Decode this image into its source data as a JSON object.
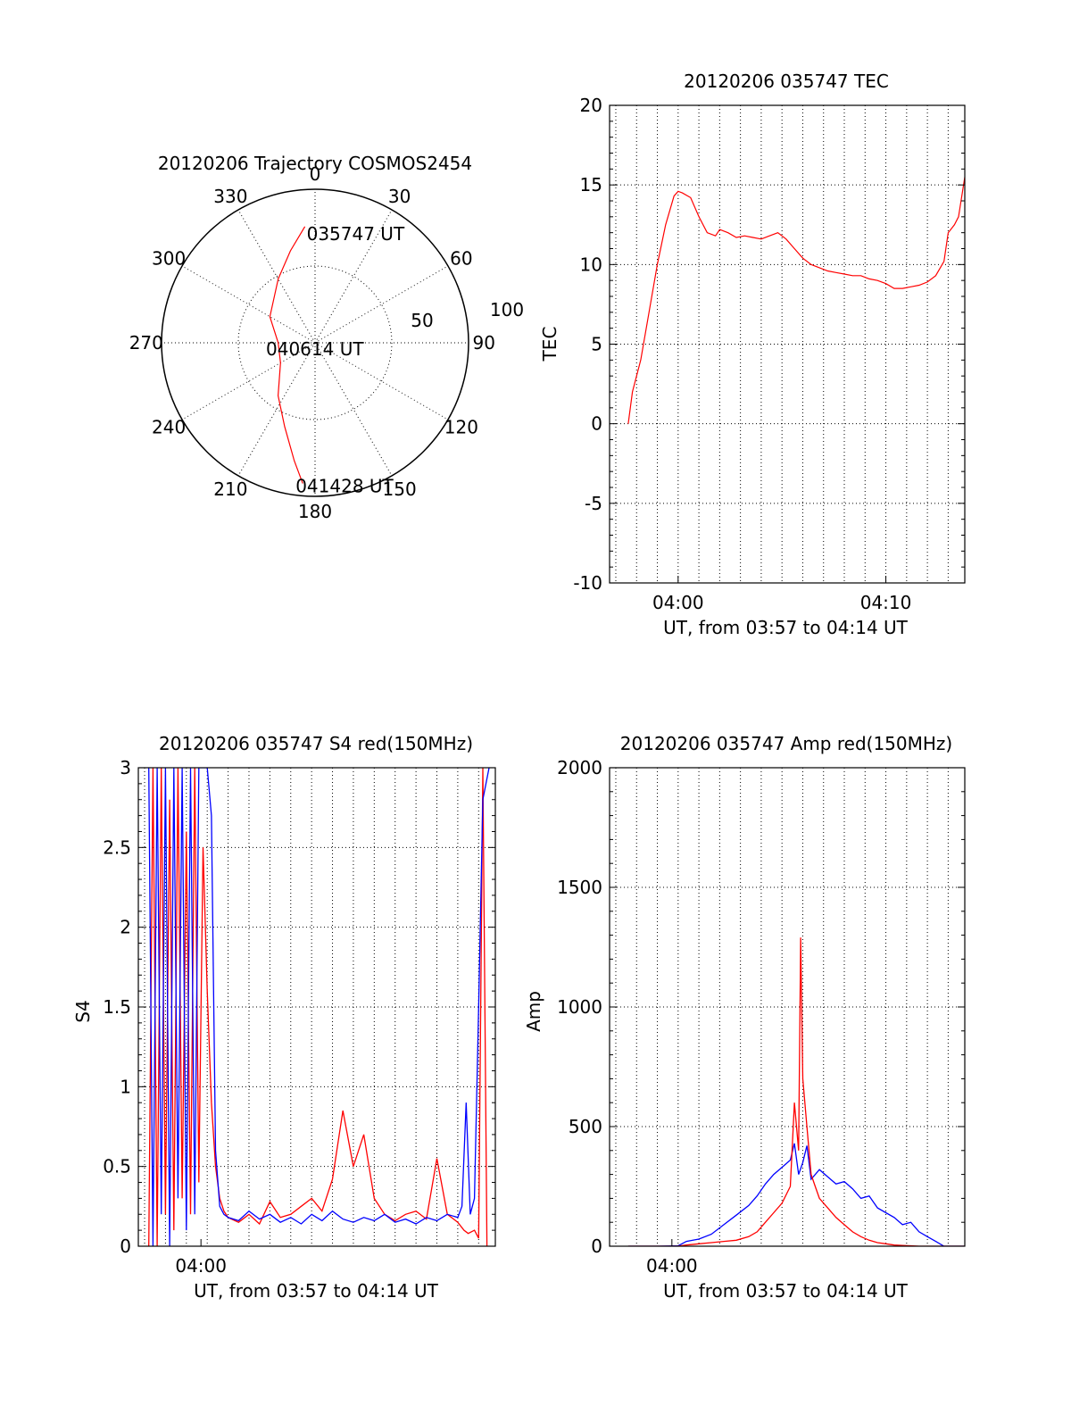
{
  "chart_data": [
    {
      "type": "polar",
      "title": "20120206 Trajectory COSMOS2454",
      "angle_labels": [
        "0",
        "30",
        "60",
        "90",
        "120",
        "150",
        "180",
        "210",
        "240",
        "270",
        "300",
        "330"
      ],
      "radial_labels": [
        "50",
        "100"
      ],
      "rlim": [
        0,
        100
      ],
      "grid": true,
      "series": [
        {
          "color": "#ff0000",
          "points": [
            [
              355,
              76
            ],
            [
              345,
              62
            ],
            [
              330,
              48
            ],
            [
              300,
              34
            ],
            [
              270,
              24
            ],
            [
              240,
              26
            ],
            [
              215,
              42
            ],
            [
              200,
              58
            ],
            [
              190,
              78
            ],
            [
              185,
              92
            ]
          ]
        }
      ],
      "annotations": [
        {
          "text": "035747 UT",
          "az": 355,
          "r": 76
        },
        {
          "text": "040614 UT",
          "az": 270,
          "r": 0
        },
        {
          "text": "041428 UT",
          "az": 185,
          "r": 92
        }
      ]
    },
    {
      "type": "line",
      "title": "20120206 035747 TEC",
      "xlabel": "UT, from 03:57 to 04:14 UT",
      "ylabel": "TEC",
      "xlim": [
        3.7,
        20.8
      ],
      "ylim": [
        -10,
        20
      ],
      "xticks": [
        {
          "value": 7.0,
          "label": "04:00"
        },
        {
          "value": 17.0,
          "label": "04:10"
        }
      ],
      "yticks": [
        "-10",
        "-5",
        "0",
        "5",
        "10",
        "15",
        "20"
      ],
      "grid": true,
      "series": [
        {
          "color": "#ff0000",
          "x": [
            4.6,
            4.8,
            5.2,
            5.6,
            6.0,
            6.4,
            6.8,
            7.0,
            7.2,
            7.6,
            8.0,
            8.4,
            8.8,
            9.0,
            9.4,
            9.8,
            10.2,
            10.6,
            11.0,
            11.4,
            11.8,
            12.2,
            12.6,
            13.0,
            13.4,
            13.8,
            14.2,
            14.6,
            15.0,
            15.4,
            15.8,
            16.2,
            16.6,
            17.0,
            17.4,
            17.8,
            18.2,
            18.6,
            19.0,
            19.4,
            19.8,
            20.0,
            20.3,
            20.5,
            20.8
          ],
          "y": [
            0.0,
            2.0,
            4.0,
            7.0,
            10.0,
            12.5,
            14.3,
            14.6,
            14.5,
            14.2,
            13.0,
            12.0,
            11.8,
            12.2,
            12.0,
            11.7,
            11.8,
            11.7,
            11.6,
            11.8,
            12.0,
            11.6,
            11.0,
            10.4,
            10.0,
            9.8,
            9.6,
            9.5,
            9.4,
            9.3,
            9.3,
            9.1,
            9.0,
            8.8,
            8.5,
            8.5,
            8.6,
            8.7,
            8.9,
            9.3,
            10.2,
            12.0,
            12.5,
            13.0,
            15.5
          ]
        }
      ]
    },
    {
      "type": "line",
      "title": "20120206 035747 S4 red(150MHz)",
      "xlabel": "UT, from 03:57 to 04:14 UT",
      "ylabel": "S4",
      "xlim": [
        3.7,
        20.8
      ],
      "ylim": [
        0,
        3
      ],
      "xticks": [
        {
          "value": 6.7,
          "label": "04:00"
        }
      ],
      "yticks": [
        "0",
        "0.5",
        "1",
        "1.5",
        "2",
        "2.5",
        "3"
      ],
      "grid": true,
      "series": [
        {
          "color": "#ff0000",
          "x": [
            4.2,
            4.4,
            4.6,
            4.8,
            5.0,
            5.2,
            5.4,
            5.6,
            5.8,
            6.0,
            6.2,
            6.4,
            6.6,
            6.8,
            7.0,
            7.2,
            7.4,
            7.6,
            7.8,
            8.0,
            8.5,
            9.0,
            9.5,
            10.0,
            10.5,
            11.0,
            11.5,
            12.0,
            12.5,
            13.0,
            13.5,
            14.0,
            14.5,
            15.0,
            15.5,
            16.0,
            16.5,
            17.0,
            17.5,
            18.0,
            18.5,
            19.0,
            19.3,
            19.5,
            19.8,
            20.0,
            20.2,
            20.4
          ],
          "y": [
            0.0,
            3.0,
            0.0,
            3.0,
            0.2,
            2.8,
            0.1,
            3.0,
            0.3,
            2.6,
            0.2,
            3.0,
            0.4,
            2.5,
            1.6,
            0.9,
            0.5,
            0.3,
            0.22,
            0.18,
            0.15,
            0.2,
            0.14,
            0.28,
            0.18,
            0.2,
            0.25,
            0.3,
            0.22,
            0.42,
            0.85,
            0.5,
            0.7,
            0.3,
            0.2,
            0.16,
            0.2,
            0.22,
            0.17,
            0.55,
            0.2,
            0.15,
            0.1,
            0.08,
            0.1,
            0.05,
            3.0,
            0.0
          ]
        },
        {
          "color": "#0000ff",
          "x": [
            4.2,
            4.4,
            4.6,
            4.8,
            5.0,
            5.2,
            5.4,
            5.6,
            5.8,
            6.0,
            6.2,
            6.4,
            6.6,
            6.8,
            7.0,
            7.2,
            7.4,
            7.6,
            7.8,
            8.0,
            8.5,
            9.0,
            9.5,
            10.0,
            10.5,
            11.0,
            11.5,
            12.0,
            12.5,
            13.0,
            13.5,
            14.0,
            14.5,
            15.0,
            15.5,
            16.0,
            16.5,
            17.0,
            17.5,
            18.0,
            18.5,
            19.0,
            19.2,
            19.4,
            19.6,
            19.8,
            20.0,
            20.2,
            20.5
          ],
          "y": [
            3.0,
            0.0,
            3.0,
            0.2,
            3.0,
            0.0,
            3.0,
            0.3,
            3.0,
            0.1,
            3.0,
            0.2,
            3.0,
            3.0,
            3.0,
            2.7,
            0.6,
            0.25,
            0.2,
            0.18,
            0.16,
            0.22,
            0.17,
            0.2,
            0.15,
            0.18,
            0.14,
            0.2,
            0.16,
            0.22,
            0.17,
            0.15,
            0.18,
            0.16,
            0.2,
            0.15,
            0.17,
            0.14,
            0.18,
            0.16,
            0.2,
            0.18,
            0.25,
            0.9,
            0.2,
            0.3,
            1.5,
            2.8,
            3.0
          ]
        }
      ]
    },
    {
      "type": "line",
      "title": "20120206 035747 Amp red(150MHz)",
      "xlabel": "UT, from 03:57 to 04:14 UT",
      "ylabel": "Amp",
      "xlim": [
        3.7,
        20.8
      ],
      "ylim": [
        0,
        2000
      ],
      "xticks": [
        {
          "value": 6.7,
          "label": "04:00"
        }
      ],
      "yticks": [
        "0",
        "500",
        "1000",
        "1500",
        "2000"
      ],
      "grid": true,
      "series": [
        {
          "color": "#0000ff",
          "x": [
            4.6,
            6.0,
            7.0,
            7.4,
            8.0,
            8.6,
            9.2,
            9.8,
            10.4,
            10.8,
            11.2,
            11.6,
            12.0,
            12.4,
            12.6,
            12.8,
            13.0,
            13.2,
            13.4,
            13.8,
            14.2,
            14.6,
            15.0,
            15.4,
            15.8,
            16.2,
            16.6,
            17.0,
            17.4,
            17.8,
            18.2,
            18.6,
            19.0,
            19.4,
            19.8,
            20.8
          ],
          "y": [
            0,
            0,
            2,
            20,
            30,
            50,
            90,
            130,
            170,
            210,
            260,
            300,
            330,
            360,
            430,
            300,
            350,
            420,
            280,
            320,
            290,
            260,
            270,
            240,
            200,
            210,
            160,
            140,
            120,
            90,
            100,
            60,
            40,
            20,
            0,
            0
          ]
        },
        {
          "color": "#ff0000",
          "x": [
            4.6,
            6.0,
            7.0,
            7.4,
            8.0,
            8.6,
            9.2,
            9.8,
            10.4,
            10.8,
            11.2,
            11.6,
            12.0,
            12.4,
            12.6,
            12.8,
            12.9,
            13.0,
            13.2,
            13.4,
            13.6,
            13.8,
            14.2,
            14.6,
            15.0,
            15.4,
            15.8,
            16.2,
            16.6,
            17.0,
            17.4,
            17.8,
            18.2,
            18.6,
            19.0,
            20.8
          ],
          "y": [
            0,
            0,
            0,
            5,
            10,
            15,
            20,
            25,
            40,
            60,
            100,
            140,
            180,
            250,
            600,
            400,
            1290,
            700,
            500,
            300,
            250,
            200,
            160,
            120,
            90,
            60,
            40,
            25,
            15,
            10,
            5,
            3,
            2,
            0,
            0,
            0
          ]
        }
      ]
    }
  ]
}
